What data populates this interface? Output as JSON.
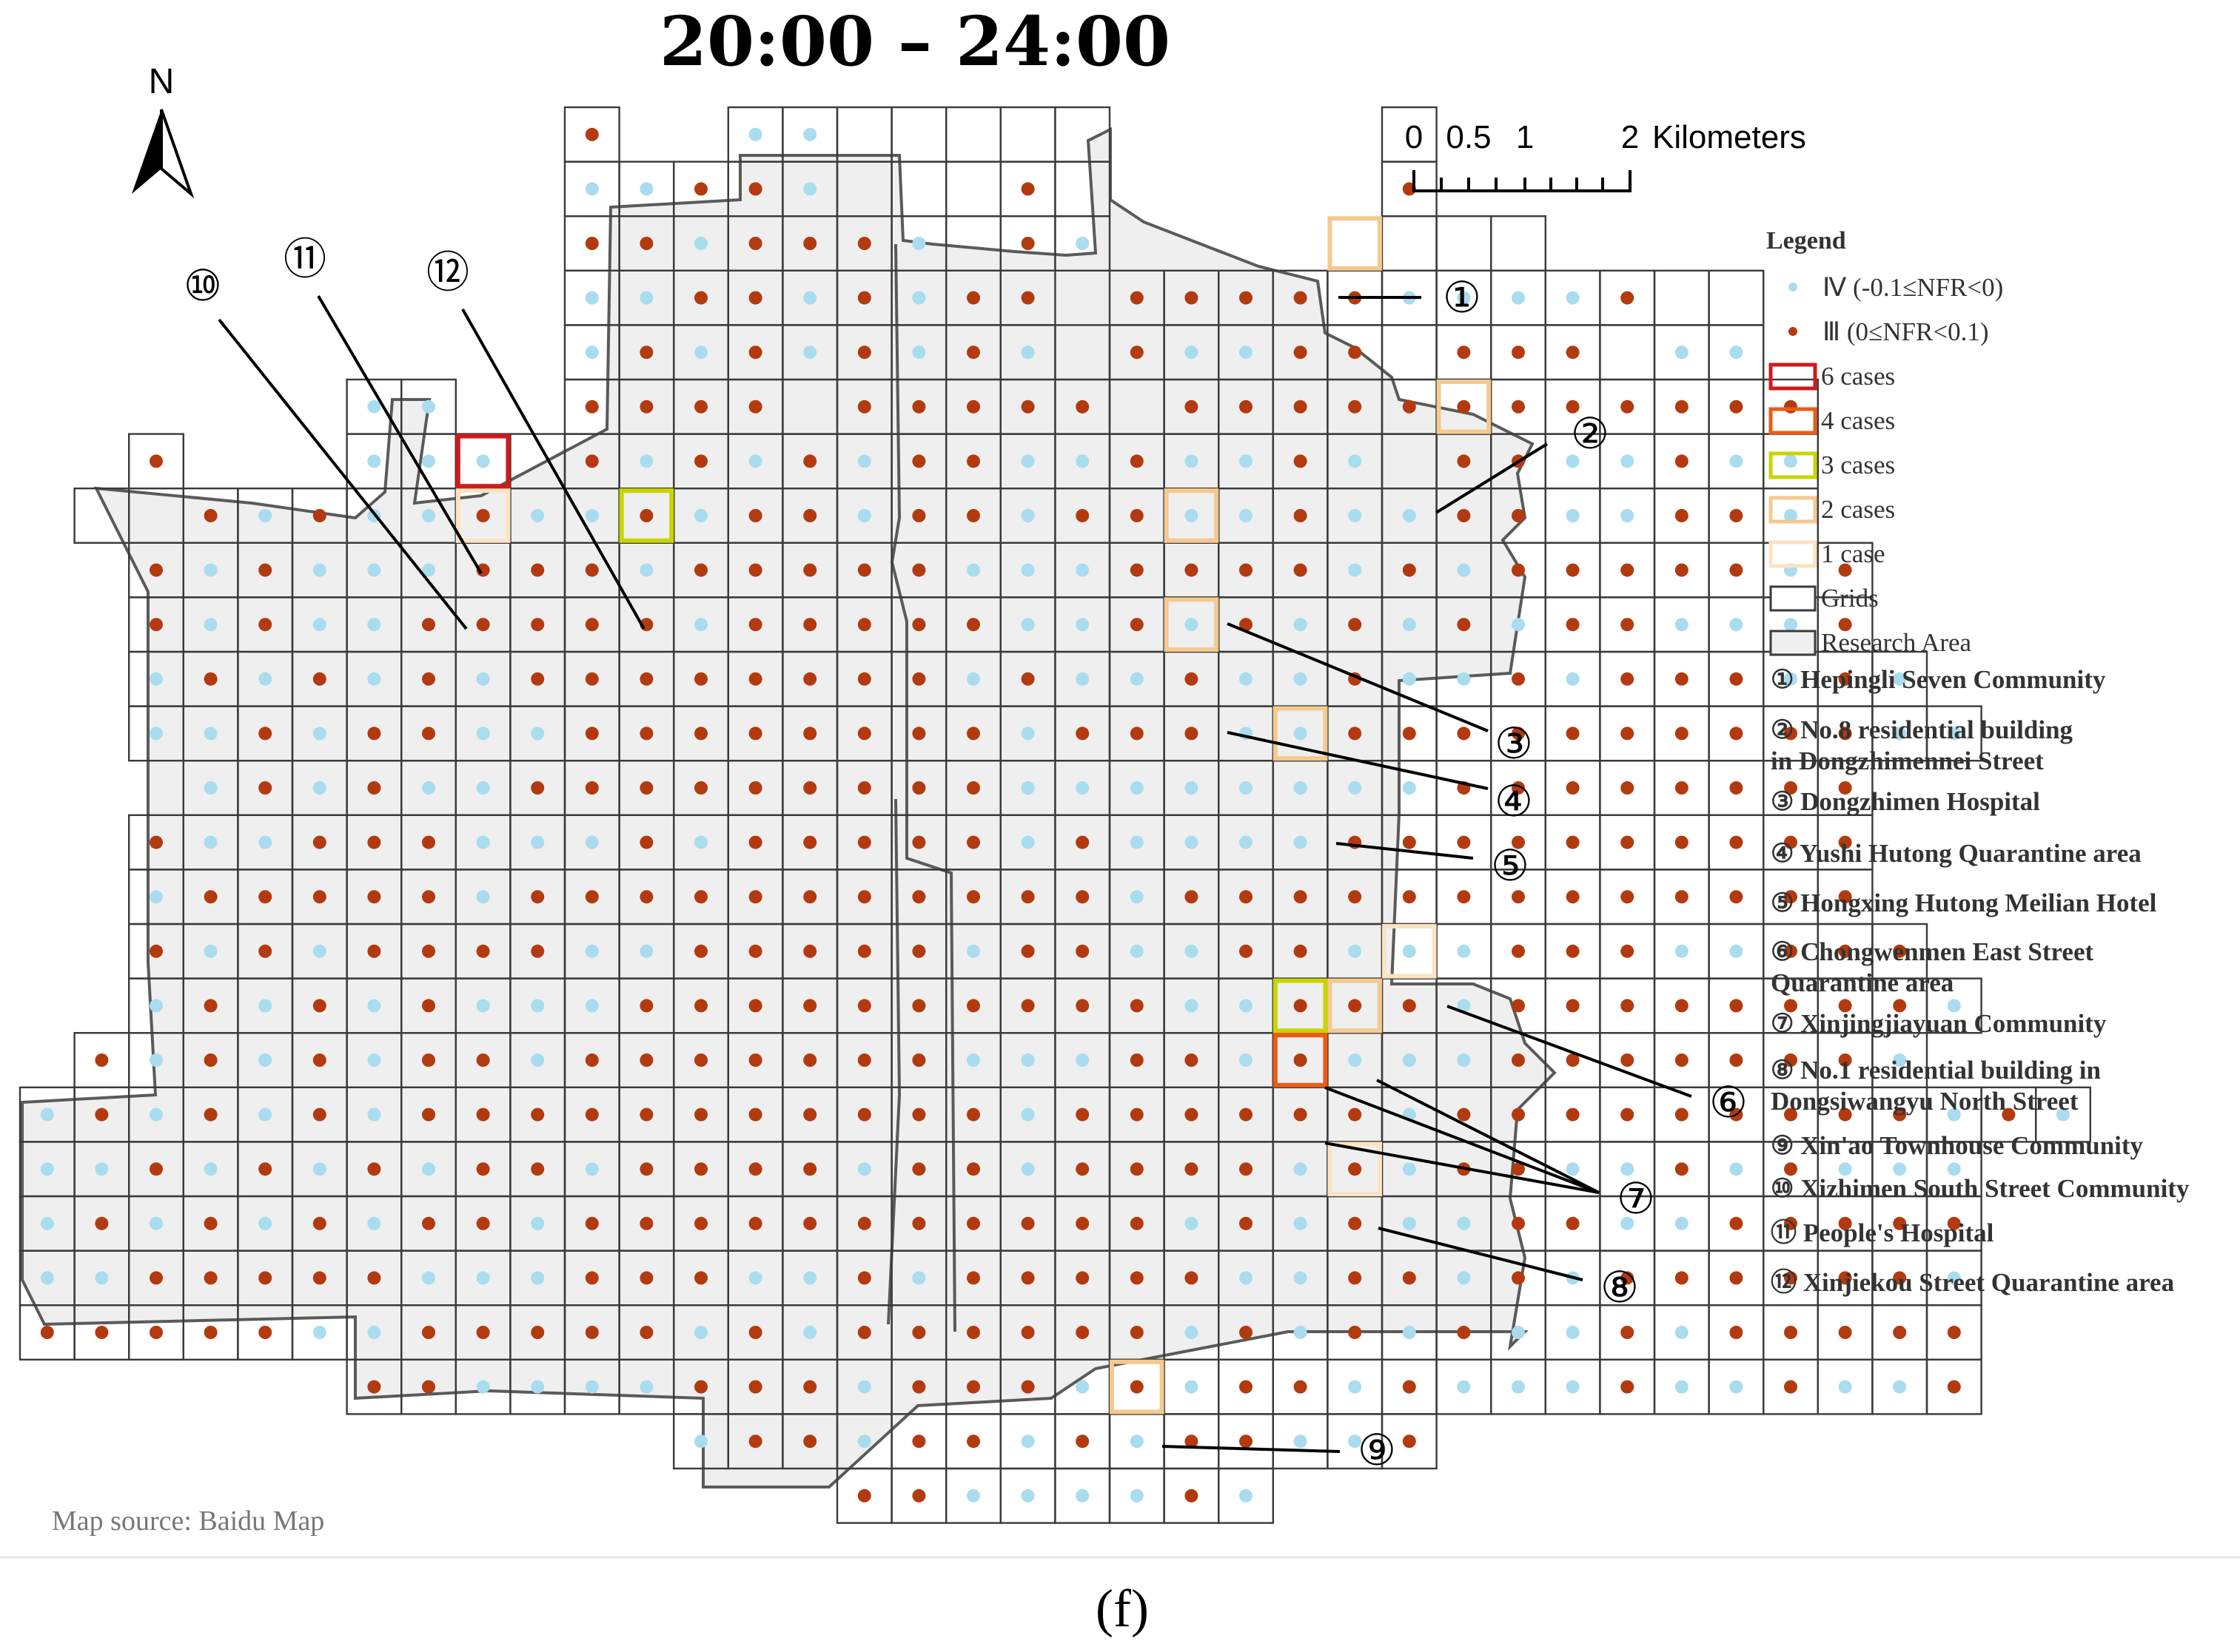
{
  "title": "20:00 – 24:00",
  "caption": "(f)",
  "map_source": "Map source: Baidu Map",
  "north_label": "N",
  "scale_bar": {
    "labels": [
      "0",
      "0.5",
      "1",
      "2"
    ],
    "unit": "Kilometers"
  },
  "legend": {
    "title": "Legend",
    "points": [
      {
        "label": "Ⅳ (-0.1≤NFR<0)",
        "color": "#a9dcef"
      },
      {
        "label": "Ⅲ (0≤NFR<0.1)",
        "color": "#b33a0f"
      }
    ],
    "case_boxes": [
      {
        "label": "6 cases",
        "color": "#d11a1a"
      },
      {
        "label": "4 cases",
        "color": "#ec5b16"
      },
      {
        "label": "3 cases",
        "color": "#c9d400"
      },
      {
        "label": "2 cases",
        "color": "#f5c98e"
      },
      {
        "label": "1 case",
        "color": "#fbe3c3"
      }
    ],
    "grid_label": "Grids",
    "area_label": "Research Area",
    "grid_color": "#3a3a3a",
    "area_fill": "#efefef"
  },
  "sites": [
    {
      "num": "①",
      "line1": "Hepingli Seven Community",
      "line2": ""
    },
    {
      "num": "②",
      "line1": "No.8 residential building",
      "line2": "in Dongzhimennei Street"
    },
    {
      "num": "③",
      "line1": "Dongzhimen Hospital",
      "line2": ""
    },
    {
      "num": "④",
      "line1": "Yushi Hutong Quarantine area",
      "line2": ""
    },
    {
      "num": "⑤",
      "line1": "Hongxing Hutong Meilian Hotel",
      "line2": ""
    },
    {
      "num": "⑥",
      "line1": "Chongwenmen East Street",
      "line2": "Quarantine area"
    },
    {
      "num": "⑦",
      "line1": "Xinjingjiayuan Community",
      "line2": ""
    },
    {
      "num": "⑧",
      "line1": "No.1 residential building in",
      "line2": "Dongsiwangyu North Street"
    },
    {
      "num": "⑨",
      "line1": "Xin'ao Townhouse Community",
      "line2": ""
    },
    {
      "num": "⑩",
      "line1": " Xizhimen South Street Community",
      "line2": ""
    },
    {
      "num": "⑪",
      "line1": "People's Hospital",
      "line2": ""
    },
    {
      "num": "⑫",
      "line1": "Xinjiekou Street Quarantine area",
      "line2": ""
    }
  ],
  "grid_rows": [
    "..........D..IILLLLS.....F...........",
    "..........IIDDILLLDS.....D...........",
    "..........DDIDDDILDI.....LLL.........",
    "..........IIDDIDIDD.DDDDDIIIIDLL.....",
    "..........IDIDIDIDILDIIDDLDDDLII.....",
    "......II..DDDDLDDDDDLDDDDDDDDDDDD....",
    "..D...IIILDIDIDIDDIIDIIDILDDIIDII....",
    ".LLDIDIIDIIDIDDIDDIDDIIDIIDDIIDDI....",
    "..DIDIIIDDDIDDDDDIIIDDDDIDIDDDDDID...",
    "..DIDIIDDDDDIDDDDDIIDIDIDIDIDDIIID...",
    "..IDIDIDIDDDDDDDDIDIIDIIDIIDIDDDIDI..",
    "..IIDIDDIIDDDDDDDDIDDDIIDDDDDDDDDDII.",
    "...IDIDIIDDDDDDDDDIIIIIIIIDDDDDDDD...",
    "..DIIDDDIIIDIDDDDDIDIIIIDDDDDDDDDD...",
    "..IDDDDDIDDDDDDDDDDDIDDDDDDDDDDDDD...",
    "..DIDIDDDDIIDDDDDIDDIIDDIIIDDDIIDDD..",
    "..IDIDIDIIIDDDDDDDDDDIIDDDIDDDDDDDDI.",
    ".DIDIDIDDIDDDDDDDIIIDDIDIIIDDDDDDDI..",
    "IDIDIDIDDDDDDDDDDDIDDDDDDIDDDDDDDDDIDI",
    "IIDIDIDIDDIDDDDIDDIDDDDIDIDDIIDIDIII..",
    "IDIDIDIDDIDDDDDDDDDDDIDIDIIDDIIDDDDD..",
    "IIDDDDDIIIDDDIIDIDDDDDIIDDIDIDDDDDDI..",
    "DDDDDIIDDDDDIDIDDDDDDIDIDIDIIDIDDDDD..",
    "......DDIIIIDDDIDDDIDIDDIDIIIDIIDIID..",
    "............IDDIDDIDIDDIID...........",
    "...............DDIIIIDI..............."
  ],
  "case_cells": [
    {
      "num": "①",
      "level": "2 cases"
    },
    {
      "num": "②",
      "level": "2 cases"
    },
    {
      "num": "③",
      "level": "2 cases"
    },
    {
      "num": "④",
      "level": "2 cases"
    },
    {
      "num": "⑤",
      "level": "2 cases"
    },
    {
      "num": "⑥",
      "level": "1 case"
    },
    {
      "num": "⑦",
      "level": "3 cases"
    },
    {
      "num": "⑦",
      "level": "4 cases"
    },
    {
      "num": "⑦",
      "level": "2 cases"
    },
    {
      "num": "⑧",
      "level": "1 case"
    },
    {
      "num": "⑨",
      "level": "2 cases"
    },
    {
      "num": "⑩",
      "level": "1 case"
    },
    {
      "num": "⑪",
      "level": "6 cases"
    },
    {
      "num": "⑫",
      "level": "3 cases"
    }
  ]
}
